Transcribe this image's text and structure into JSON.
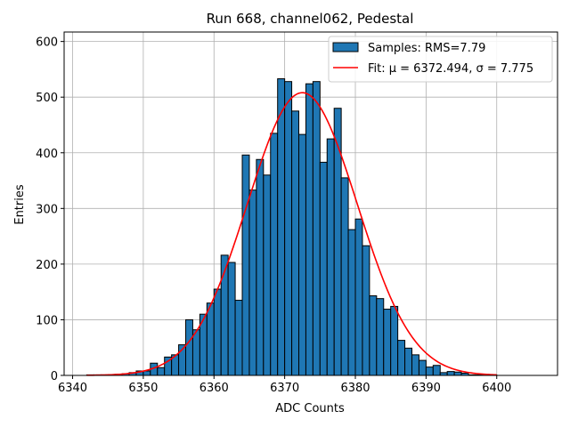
{
  "chart_data": {
    "type": "bar",
    "title": "Run 668, channel062, Pedestal",
    "xlabel": "ADC Counts",
    "ylabel": "Entries",
    "xlim": [
      6338.8,
      6408.6
    ],
    "ylim": [
      0,
      617
    ],
    "xticks": [
      6340,
      6350,
      6360,
      6370,
      6380,
      6390,
      6400
    ],
    "yticks": [
      0,
      100,
      200,
      300,
      400,
      500,
      600
    ],
    "grid": true,
    "legend_position": "top-right",
    "bin_width": 1,
    "bin_starts": [
      6342,
      6343,
      6344,
      6345,
      6346,
      6347,
      6348,
      6349,
      6350,
      6351,
      6352,
      6353,
      6354,
      6355,
      6356,
      6357,
      6358,
      6359,
      6360,
      6361,
      6362,
      6363,
      6364,
      6365,
      6366,
      6367,
      6368,
      6369,
      6370,
      6371,
      6372,
      6373,
      6374,
      6375,
      6376,
      6377,
      6378,
      6379,
      6380,
      6381,
      6382,
      6383,
      6384,
      6385,
      6386,
      6387,
      6388,
      6389,
      6390,
      6391,
      6392,
      6393,
      6394,
      6395,
      6396,
      6397,
      6398,
      6399
    ],
    "counts": [
      1,
      1,
      1,
      1,
      2,
      3,
      5,
      8,
      8,
      22,
      14,
      33,
      37,
      55,
      100,
      82,
      110,
      130,
      155,
      216,
      203,
      135,
      396,
      333,
      388,
      360,
      435,
      533,
      528,
      475,
      433,
      524,
      528,
      383,
      425,
      480,
      355,
      262,
      281,
      233,
      143,
      138,
      119,
      124,
      63,
      49,
      37,
      27,
      15,
      18,
      5,
      7,
      6,
      4,
      1,
      1,
      1,
      1
    ],
    "series": [
      {
        "name": "Samples: RMS=7.79",
        "kind": "histogram",
        "fill": "#1f77b4",
        "edge": "#000000"
      },
      {
        "name": "Fit: μ = 6372.494, σ = 7.775",
        "kind": "line",
        "color": "#ff0000",
        "mu": 6372.494,
        "sigma": 7.775,
        "amplitude": 508,
        "x_range": [
          6342,
          6400
        ]
      }
    ],
    "legend_symbols": {
      "mu": "μ",
      "sigma": "σ"
    }
  }
}
